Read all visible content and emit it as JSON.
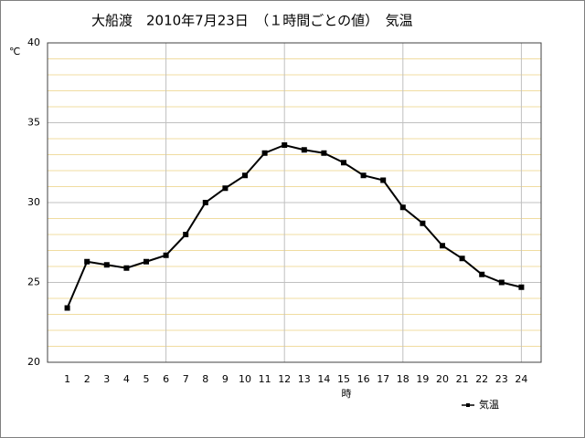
{
  "chart_data": {
    "type": "line",
    "title": "大船渡　2010年7月23日　（１時間ごとの値）　気温",
    "y_unit": "℃",
    "x_label": "時",
    "x": [
      1,
      2,
      3,
      4,
      5,
      6,
      7,
      8,
      9,
      10,
      11,
      12,
      13,
      14,
      15,
      16,
      17,
      18,
      19,
      20,
      21,
      22,
      23,
      24
    ],
    "series": [
      {
        "name": "気温",
        "color": "#000000",
        "values": [
          23.4,
          26.3,
          26.1,
          25.9,
          26.3,
          26.7,
          28.0,
          30.0,
          30.9,
          31.7,
          33.1,
          33.6,
          33.3,
          33.1,
          32.5,
          31.7,
          31.4,
          29.7,
          28.7,
          27.3,
          26.5,
          25.5,
          25.0,
          24.7
        ]
      }
    ],
    "xlim": [
      0,
      25
    ],
    "xticks": [
      1,
      2,
      3,
      4,
      5,
      6,
      7,
      8,
      9,
      10,
      11,
      12,
      13,
      14,
      15,
      16,
      17,
      18,
      19,
      20,
      21,
      22,
      23,
      24
    ],
    "xgrid": [
      6,
      12,
      18,
      24
    ],
    "ylim": [
      20,
      40
    ],
    "yticks": [
      20,
      25,
      30,
      35,
      40
    ],
    "minor_yticks": [
      21,
      22,
      23,
      24,
      26,
      27,
      28,
      29,
      31,
      32,
      33,
      34,
      36,
      37,
      38,
      39
    ],
    "grid": true,
    "legend_position": "bottom-right"
  }
}
